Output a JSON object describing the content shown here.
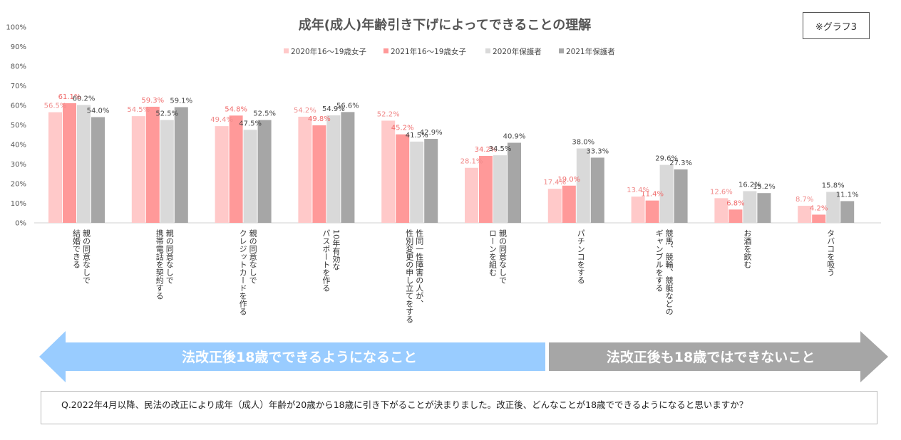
{
  "chart_data": {
    "type": "bar",
    "title": "成年(成人)年齢引き下げによってできることの理解",
    "ylim": [
      0,
      100
    ],
    "yticks": [
      "0%",
      "10%",
      "20%",
      "30%",
      "40%",
      "50%",
      "60%",
      "70%",
      "80%",
      "90%",
      "100%"
    ],
    "legend_position": "top-center",
    "categories": [
      [
        "親の同意なしで",
        "結婚できる"
      ],
      [
        "親の同意なしで",
        "携帯電話を契約する"
      ],
      [
        "親の同意なしで",
        "クレジットカードを作る"
      ],
      [
        "10年有効な",
        "パスポートを作る"
      ],
      [
        "性同一性障害の人が、",
        "性別変更の申し立てをする"
      ],
      [
        "親の同意なしで",
        "ローンを組む"
      ],
      [
        "パチンコをする"
      ],
      [
        "競馬、競輪、競艇などの",
        "ギャンブルをする"
      ],
      [
        "お酒を飲む"
      ],
      [
        "タバコを吸う"
      ]
    ],
    "series": [
      {
        "name": "2020年16〜19歳女子",
        "color": "#FFC9C9",
        "label_color": "#F08A8A",
        "values": [
          56.5,
          54.5,
          49.4,
          54.2,
          52.2,
          28.1,
          17.4,
          13.4,
          12.6,
          8.7
        ],
        "labels": [
          "56.5%",
          "54.5%",
          "49.4%",
          "54.2%",
          "52.2%",
          "28.1%",
          "17.4%",
          "13.4%",
          "12.6%",
          "8.7%"
        ]
      },
      {
        "name": "2021年16〜19歳女子",
        "color": "#FF9999",
        "label_color": "#F06A6A",
        "values": [
          61.1,
          59.3,
          54.8,
          49.8,
          45.2,
          34.2,
          19.0,
          11.4,
          6.8,
          4.2
        ],
        "labels": [
          "61.1%",
          "59.3%",
          "54.8%",
          "49.8%",
          "45.2%",
          "34.2%",
          "19.0%",
          "11.4%",
          "6.8%",
          "4.2%"
        ]
      },
      {
        "name": "2020年保護者",
        "color": "#D9D9D9",
        "label_color": "#444444",
        "values": [
          60.2,
          52.5,
          47.5,
          54.9,
          41.5,
          34.5,
          38.0,
          29.6,
          16.2,
          15.8
        ],
        "labels": [
          "60.2%",
          "52.5%",
          "47.5%",
          "54.9%",
          "41.5%",
          "34.5%",
          "38.0%",
          "29.6%",
          "16.2%",
          "15.8%"
        ]
      },
      {
        "name": "2021年保護者",
        "color": "#A6A6A6",
        "label_color": "#444444",
        "values": [
          54.0,
          59.1,
          52.5,
          56.6,
          42.9,
          40.9,
          33.3,
          27.3,
          15.2,
          11.1
        ],
        "labels": [
          "54.0%",
          "59.1%",
          "52.5%",
          "56.6%",
          "42.9%",
          "40.9%",
          "33.3%",
          "27.3%",
          "15.2%",
          "11.1%"
        ]
      }
    ]
  },
  "tag": "※グラフ3",
  "arrows": {
    "left": {
      "label": "法改正後18歳でできるようになること",
      "color": "#99CCFF"
    },
    "right": {
      "label": "法改正後も18歳ではできないこと",
      "color": "#A6A6A6"
    }
  },
  "question": "Q.2022年4月以降、民法の改正により成年（成人）年齢が20歳から18歳に引き下がることが決まりました。改正後、どんなことが18歳でできるようになると思いますか？"
}
